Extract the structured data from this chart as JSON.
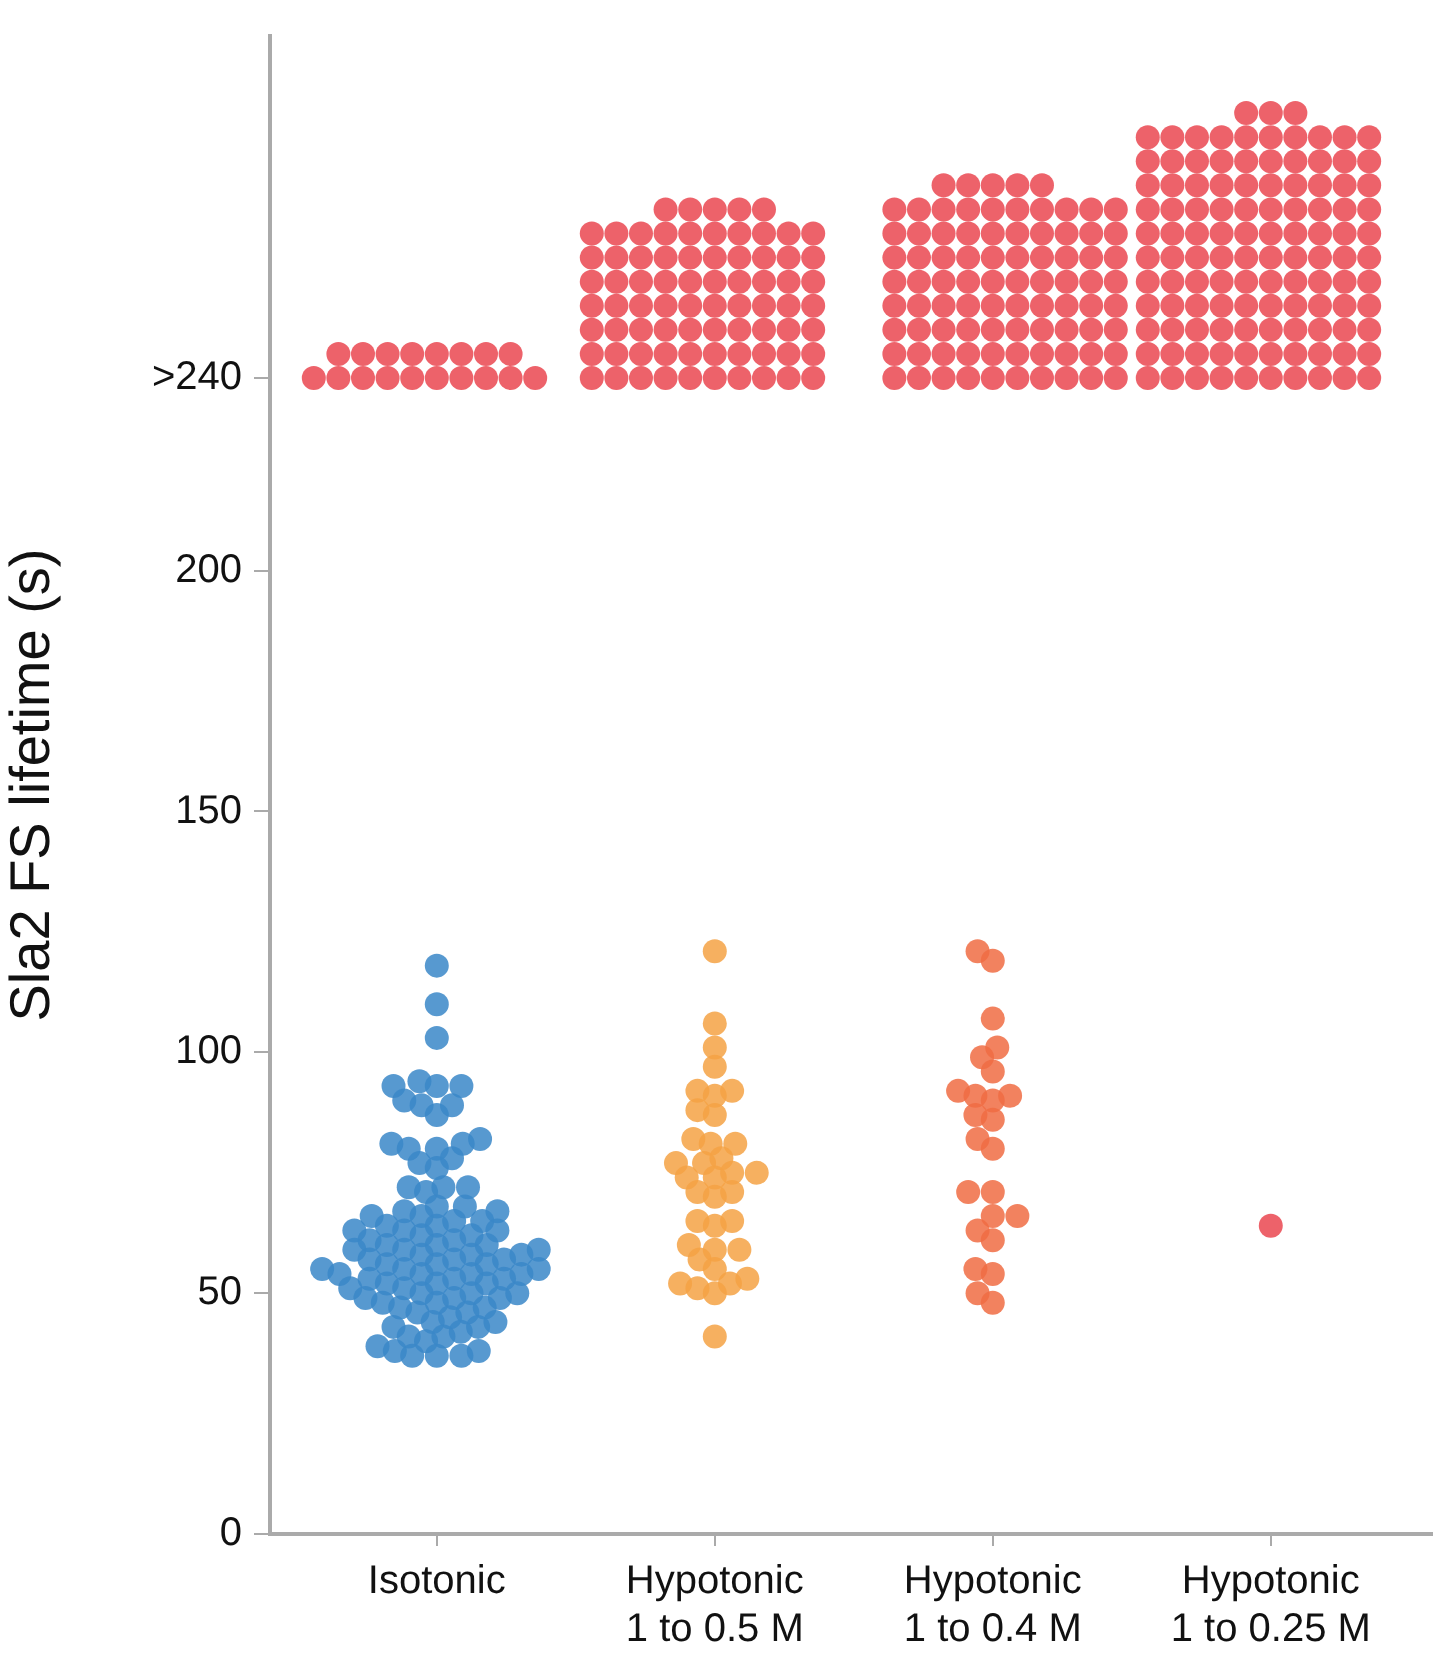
{
  "chart_data": {
    "type": "scatter",
    "ylabel": "Sla2 FS lifetime (s)",
    "categories": [
      "Isotonic",
      "Hypotonic 1 to 0.5 M",
      "Hypotonic 1 to 0.4 M",
      "Hypotonic 1 to 0.25 M"
    ],
    "ylim": [
      0,
      311
    ],
    "yticks": [
      0,
      50,
      100,
      150,
      200,
      {
        "value": 240,
        "label": ">240"
      }
    ],
    "grid": false,
    "legend": false,
    "marker": "circle",
    "series": [
      {
        "color": "#3a87c8",
        "x": [
          "Isotonic",
          "Isotonic",
          "Isotonic",
          "Isotonic",
          "Isotonic",
          "Isotonic",
          "Isotonic",
          "Isotonic",
          "Isotonic",
          "Isotonic",
          "Isotonic",
          "Isotonic",
          "Isotonic",
          "Isotonic",
          "Isotonic",
          "Isotonic",
          "Isotonic",
          "Isotonic",
          "Isotonic",
          "Isotonic",
          "Isotonic",
          "Isotonic",
          "Isotonic",
          "Isotonic",
          "Isotonic",
          "Isotonic",
          "Isotonic",
          "Isotonic",
          "Isotonic",
          "Isotonic",
          "Isotonic",
          "Isotonic",
          "Isotonic",
          "Isotonic",
          "Isotonic",
          "Isotonic",
          "Isotonic",
          "Isotonic",
          "Isotonic",
          "Isotonic",
          "Isotonic",
          "Isotonic",
          "Isotonic",
          "Isotonic",
          "Isotonic",
          "Isotonic",
          "Isotonic",
          "Isotonic",
          "Isotonic",
          "Isotonic",
          "Isotonic",
          "Isotonic",
          "Isotonic",
          "Isotonic",
          "Isotonic",
          "Isotonic",
          "Isotonic",
          "Isotonic",
          "Isotonic",
          "Isotonic",
          "Isotonic",
          "Isotonic",
          "Isotonic",
          "Isotonic",
          "Isotonic",
          "Isotonic",
          "Isotonic",
          "Isotonic",
          "Isotonic",
          "Isotonic",
          "Isotonic",
          "Isotonic",
          "Isotonic",
          "Isotonic",
          "Isotonic",
          "Isotonic",
          "Isotonic",
          "Isotonic",
          "Isotonic",
          "Isotonic",
          "Isotonic",
          "Isotonic",
          "Isotonic",
          "Isotonic",
          "Isotonic",
          "Isotonic",
          "Isotonic",
          "Isotonic",
          "Isotonic",
          "Isotonic",
          "Isotonic",
          "Isotonic",
          "Isotonic",
          "Isotonic",
          "Isotonic",
          "Isotonic",
          "Isotonic"
        ],
        "values": [
          118,
          110,
          103,
          94,
          93,
          93,
          93,
          89,
          90,
          89,
          87,
          81,
          82,
          81,
          80,
          78,
          80,
          77,
          76,
          72,
          72,
          72,
          71,
          68,
          68,
          67,
          67,
          66,
          66,
          65,
          65,
          64,
          64,
          63,
          63,
          63,
          62,
          62,
          61,
          61,
          60,
          60,
          60,
          59,
          59,
          59,
          58,
          58,
          58,
          57,
          57,
          57,
          56,
          56,
          56,
          55,
          55,
          55,
          54,
          54,
          54,
          54,
          53,
          53,
          53,
          52,
          52,
          52,
          51,
          51,
          50,
          50,
          50,
          49,
          49,
          49,
          48,
          48,
          47,
          47,
          46,
          46,
          45,
          44,
          44,
          43,
          43,
          42,
          41,
          41,
          40,
          39,
          38,
          38,
          37,
          37,
          37
        ]
      },
      {
        "color": "#f5a244",
        "x": [
          "Hypotonic 1 to 0.5 M",
          "Hypotonic 1 to 0.5 M",
          "Hypotonic 1 to 0.5 M",
          "Hypotonic 1 to 0.5 M",
          "Hypotonic 1 to 0.5 M",
          "Hypotonic 1 to 0.5 M",
          "Hypotonic 1 to 0.5 M",
          "Hypotonic 1 to 0.5 M",
          "Hypotonic 1 to 0.5 M",
          "Hypotonic 1 to 0.5 M",
          "Hypotonic 1 to 0.5 M",
          "Hypotonic 1 to 0.5 M",
          "Hypotonic 1 to 0.5 M",
          "Hypotonic 1 to 0.5 M",
          "Hypotonic 1 to 0.5 M",
          "Hypotonic 1 to 0.5 M",
          "Hypotonic 1 to 0.5 M",
          "Hypotonic 1 to 0.5 M",
          "Hypotonic 1 to 0.5 M",
          "Hypotonic 1 to 0.5 M",
          "Hypotonic 1 to 0.5 M",
          "Hypotonic 1 to 0.5 M",
          "Hypotonic 1 to 0.5 M",
          "Hypotonic 1 to 0.5 M",
          "Hypotonic 1 to 0.5 M",
          "Hypotonic 1 to 0.5 M",
          "Hypotonic 1 to 0.5 M",
          "Hypotonic 1 to 0.5 M",
          "Hypotonic 1 to 0.5 M",
          "Hypotonic 1 to 0.5 M",
          "Hypotonic 1 to 0.5 M",
          "Hypotonic 1 to 0.5 M",
          "Hypotonic 1 to 0.5 M",
          "Hypotonic 1 to 0.5 M",
          "Hypotonic 1 to 0.5 M",
          "Hypotonic 1 to 0.5 M"
        ],
        "values": [
          121,
          106,
          101,
          97,
          92,
          91,
          92,
          87,
          88,
          81,
          81,
          82,
          78,
          77,
          77,
          74,
          75,
          74,
          71,
          71,
          70,
          75,
          64,
          65,
          65,
          57,
          59,
          59,
          60,
          52,
          53,
          52,
          55,
          50,
          51,
          41
        ]
      },
      {
        "color": "#f06c43",
        "x": [
          "Hypotonic 1 to 0.4 M",
          "Hypotonic 1 to 0.4 M",
          "Hypotonic 1 to 0.4 M",
          "Hypotonic 1 to 0.4 M",
          "Hypotonic 1 to 0.4 M",
          "Hypotonic 1 to 0.4 M",
          "Hypotonic 1 to 0.4 M",
          "Hypotonic 1 to 0.4 M",
          "Hypotonic 1 to 0.4 M",
          "Hypotonic 1 to 0.4 M",
          "Hypotonic 1 to 0.4 M",
          "Hypotonic 1 to 0.4 M",
          "Hypotonic 1 to 0.4 M",
          "Hypotonic 1 to 0.4 M",
          "Hypotonic 1 to 0.4 M",
          "Hypotonic 1 to 0.4 M",
          "Hypotonic 1 to 0.4 M",
          "Hypotonic 1 to 0.4 M",
          "Hypotonic 1 to 0.4 M",
          "Hypotonic 1 to 0.4 M",
          "Hypotonic 1 to 0.4 M",
          "Hypotonic 1 to 0.4 M",
          "Hypotonic 1 to 0.4 M",
          "Hypotonic 1 to 0.4 M"
        ],
        "values": [
          121,
          119,
          107,
          99,
          101,
          96,
          91,
          92,
          90,
          87,
          91,
          86,
          82,
          80,
          71,
          71,
          66,
          66,
          63,
          61,
          55,
          54,
          50,
          48
        ]
      },
      {
        "color": "#ea4650",
        "x": [
          "Isotonic",
          "Isotonic",
          "Isotonic",
          "Isotonic",
          "Isotonic",
          "Isotonic",
          "Isotonic",
          "Isotonic",
          "Isotonic",
          "Isotonic",
          "Isotonic",
          "Isotonic",
          "Isotonic",
          "Isotonic",
          "Isotonic",
          "Isotonic",
          "Isotonic",
          "Isotonic"
        ],
        "values": [
          240,
          240,
          240,
          240,
          240,
          240,
          240,
          240,
          240,
          240,
          245,
          245,
          245,
          245,
          245,
          245,
          245,
          245
        ]
      },
      {
        "color": "#ea4650",
        "x": [
          "Hypotonic 1 to 0.5 M",
          "Hypotonic 1 to 0.5 M",
          "Hypotonic 1 to 0.5 M",
          "Hypotonic 1 to 0.5 M",
          "Hypotonic 1 to 0.5 M",
          "Hypotonic 1 to 0.5 M",
          "Hypotonic 1 to 0.5 M",
          "Hypotonic 1 to 0.5 M",
          "Hypotonic 1 to 0.5 M",
          "Hypotonic 1 to 0.5 M",
          "Hypotonic 1 to 0.5 M",
          "Hypotonic 1 to 0.5 M",
          "Hypotonic 1 to 0.5 M",
          "Hypotonic 1 to 0.5 M",
          "Hypotonic 1 to 0.5 M",
          "Hypotonic 1 to 0.5 M",
          "Hypotonic 1 to 0.5 M",
          "Hypotonic 1 to 0.5 M",
          "Hypotonic 1 to 0.5 M",
          "Hypotonic 1 to 0.5 M",
          "Hypotonic 1 to 0.5 M",
          "Hypotonic 1 to 0.5 M",
          "Hypotonic 1 to 0.5 M",
          "Hypotonic 1 to 0.5 M",
          "Hypotonic 1 to 0.5 M",
          "Hypotonic 1 to 0.5 M",
          "Hypotonic 1 to 0.5 M",
          "Hypotonic 1 to 0.5 M",
          "Hypotonic 1 to 0.5 M",
          "Hypotonic 1 to 0.5 M",
          "Hypotonic 1 to 0.5 M",
          "Hypotonic 1 to 0.5 M",
          "Hypotonic 1 to 0.5 M",
          "Hypotonic 1 to 0.5 M",
          "Hypotonic 1 to 0.5 M",
          "Hypotonic 1 to 0.5 M",
          "Hypotonic 1 to 0.5 M",
          "Hypotonic 1 to 0.5 M",
          "Hypotonic 1 to 0.5 M",
          "Hypotonic 1 to 0.5 M",
          "Hypotonic 1 to 0.5 M",
          "Hypotonic 1 to 0.5 M",
          "Hypotonic 1 to 0.5 M",
          "Hypotonic 1 to 0.5 M",
          "Hypotonic 1 to 0.5 M",
          "Hypotonic 1 to 0.5 M",
          "Hypotonic 1 to 0.5 M",
          "Hypotonic 1 to 0.5 M",
          "Hypotonic 1 to 0.5 M",
          "Hypotonic 1 to 0.5 M",
          "Hypotonic 1 to 0.5 M",
          "Hypotonic 1 to 0.5 M",
          "Hypotonic 1 to 0.5 M",
          "Hypotonic 1 to 0.5 M",
          "Hypotonic 1 to 0.5 M",
          "Hypotonic 1 to 0.5 M",
          "Hypotonic 1 to 0.5 M",
          "Hypotonic 1 to 0.5 M",
          "Hypotonic 1 to 0.5 M",
          "Hypotonic 1 to 0.5 M",
          "Hypotonic 1 to 0.5 M",
          "Hypotonic 1 to 0.5 M",
          "Hypotonic 1 to 0.5 M",
          "Hypotonic 1 to 0.5 M",
          "Hypotonic 1 to 0.5 M",
          "Hypotonic 1 to 0.5 M",
          "Hypotonic 1 to 0.5 M",
          "Hypotonic 1 to 0.5 M",
          "Hypotonic 1 to 0.5 M",
          "Hypotonic 1 to 0.5 M",
          "Hypotonic 1 to 0.5 M",
          "Hypotonic 1 to 0.5 M",
          "Hypotonic 1 to 0.5 M",
          "Hypotonic 1 to 0.5 M",
          "Hypotonic 1 to 0.5 M"
        ],
        "values": [
          240,
          240,
          240,
          240,
          240,
          240,
          240,
          240,
          240,
          240,
          245,
          245,
          245,
          245,
          245,
          245,
          245,
          245,
          245,
          245,
          250,
          250,
          250,
          250,
          250,
          250,
          250,
          250,
          250,
          250,
          255,
          255,
          255,
          255,
          255,
          255,
          255,
          255,
          255,
          255,
          260,
          260,
          260,
          260,
          260,
          260,
          260,
          260,
          260,
          260,
          265,
          265,
          265,
          265,
          265,
          265,
          265,
          265,
          265,
          265,
          270,
          270,
          270,
          270,
          270,
          270,
          270,
          270,
          270,
          270,
          275,
          275,
          275,
          275,
          275
        ]
      },
      {
        "color": "#ea4650",
        "x": [
          "Hypotonic 1 to 0.4 M",
          "Hypotonic 1 to 0.4 M",
          "Hypotonic 1 to 0.4 M",
          "Hypotonic 1 to 0.4 M",
          "Hypotonic 1 to 0.4 M",
          "Hypotonic 1 to 0.4 M",
          "Hypotonic 1 to 0.4 M",
          "Hypotonic 1 to 0.4 M",
          "Hypotonic 1 to 0.4 M",
          "Hypotonic 1 to 0.4 M",
          "Hypotonic 1 to 0.4 M",
          "Hypotonic 1 to 0.4 M",
          "Hypotonic 1 to 0.4 M",
          "Hypotonic 1 to 0.4 M",
          "Hypotonic 1 to 0.4 M",
          "Hypotonic 1 to 0.4 M",
          "Hypotonic 1 to 0.4 M",
          "Hypotonic 1 to 0.4 M",
          "Hypotonic 1 to 0.4 M",
          "Hypotonic 1 to 0.4 M",
          "Hypotonic 1 to 0.4 M",
          "Hypotonic 1 to 0.4 M",
          "Hypotonic 1 to 0.4 M",
          "Hypotonic 1 to 0.4 M",
          "Hypotonic 1 to 0.4 M",
          "Hypotonic 1 to 0.4 M",
          "Hypotonic 1 to 0.4 M",
          "Hypotonic 1 to 0.4 M",
          "Hypotonic 1 to 0.4 M",
          "Hypotonic 1 to 0.4 M",
          "Hypotonic 1 to 0.4 M",
          "Hypotonic 1 to 0.4 M",
          "Hypotonic 1 to 0.4 M",
          "Hypotonic 1 to 0.4 M",
          "Hypotonic 1 to 0.4 M",
          "Hypotonic 1 to 0.4 M",
          "Hypotonic 1 to 0.4 M",
          "Hypotonic 1 to 0.4 M",
          "Hypotonic 1 to 0.4 M",
          "Hypotonic 1 to 0.4 M",
          "Hypotonic 1 to 0.4 M",
          "Hypotonic 1 to 0.4 M",
          "Hypotonic 1 to 0.4 M",
          "Hypotonic 1 to 0.4 M",
          "Hypotonic 1 to 0.4 M",
          "Hypotonic 1 to 0.4 M",
          "Hypotonic 1 to 0.4 M",
          "Hypotonic 1 to 0.4 M",
          "Hypotonic 1 to 0.4 M",
          "Hypotonic 1 to 0.4 M",
          "Hypotonic 1 to 0.4 M",
          "Hypotonic 1 to 0.4 M",
          "Hypotonic 1 to 0.4 M",
          "Hypotonic 1 to 0.4 M",
          "Hypotonic 1 to 0.4 M",
          "Hypotonic 1 to 0.4 M",
          "Hypotonic 1 to 0.4 M",
          "Hypotonic 1 to 0.4 M",
          "Hypotonic 1 to 0.4 M",
          "Hypotonic 1 to 0.4 M",
          "Hypotonic 1 to 0.4 M",
          "Hypotonic 1 to 0.4 M",
          "Hypotonic 1 to 0.4 M",
          "Hypotonic 1 to 0.4 M",
          "Hypotonic 1 to 0.4 M",
          "Hypotonic 1 to 0.4 M",
          "Hypotonic 1 to 0.4 M",
          "Hypotonic 1 to 0.4 M",
          "Hypotonic 1 to 0.4 M",
          "Hypotonic 1 to 0.4 M",
          "Hypotonic 1 to 0.4 M",
          "Hypotonic 1 to 0.4 M",
          "Hypotonic 1 to 0.4 M",
          "Hypotonic 1 to 0.4 M",
          "Hypotonic 1 to 0.4 M",
          "Hypotonic 1 to 0.4 M",
          "Hypotonic 1 to 0.4 M",
          "Hypotonic 1 to 0.4 M",
          "Hypotonic 1 to 0.4 M",
          "Hypotonic 1 to 0.4 M",
          "Hypotonic 1 to 0.4 M",
          "Hypotonic 1 to 0.4 M",
          "Hypotonic 1 to 0.4 M",
          "Hypotonic 1 to 0.4 M",
          "Hypotonic 1 to 0.4 M"
        ],
        "values": [
          240,
          240,
          240,
          240,
          240,
          240,
          240,
          240,
          240,
          240,
          245,
          245,
          245,
          245,
          245,
          245,
          245,
          245,
          245,
          245,
          250,
          250,
          250,
          250,
          250,
          250,
          250,
          250,
          250,
          250,
          255,
          255,
          255,
          255,
          255,
          255,
          255,
          255,
          255,
          255,
          260,
          260,
          260,
          260,
          260,
          260,
          260,
          260,
          260,
          260,
          265,
          265,
          265,
          265,
          265,
          265,
          265,
          265,
          265,
          265,
          270,
          270,
          270,
          270,
          270,
          270,
          270,
          270,
          270,
          270,
          275,
          275,
          275,
          275,
          275,
          275,
          275,
          275,
          275,
          275,
          280,
          280,
          280,
          280,
          280
        ]
      },
      {
        "color": "#ea4650",
        "x": [
          "Hypotonic 1 to 0.25 M",
          "Hypotonic 1 to 0.25 M",
          "Hypotonic 1 to 0.25 M",
          "Hypotonic 1 to 0.25 M",
          "Hypotonic 1 to 0.25 M",
          "Hypotonic 1 to 0.25 M",
          "Hypotonic 1 to 0.25 M",
          "Hypotonic 1 to 0.25 M",
          "Hypotonic 1 to 0.25 M",
          "Hypotonic 1 to 0.25 M",
          "Hypotonic 1 to 0.25 M",
          "Hypotonic 1 to 0.25 M",
          "Hypotonic 1 to 0.25 M",
          "Hypotonic 1 to 0.25 M",
          "Hypotonic 1 to 0.25 M",
          "Hypotonic 1 to 0.25 M",
          "Hypotonic 1 to 0.25 M",
          "Hypotonic 1 to 0.25 M",
          "Hypotonic 1 to 0.25 M",
          "Hypotonic 1 to 0.25 M",
          "Hypotonic 1 to 0.25 M",
          "Hypotonic 1 to 0.25 M",
          "Hypotonic 1 to 0.25 M",
          "Hypotonic 1 to 0.25 M",
          "Hypotonic 1 to 0.25 M",
          "Hypotonic 1 to 0.25 M",
          "Hypotonic 1 to 0.25 M",
          "Hypotonic 1 to 0.25 M",
          "Hypotonic 1 to 0.25 M",
          "Hypotonic 1 to 0.25 M",
          "Hypotonic 1 to 0.25 M",
          "Hypotonic 1 to 0.25 M",
          "Hypotonic 1 to 0.25 M",
          "Hypotonic 1 to 0.25 M",
          "Hypotonic 1 to 0.25 M",
          "Hypotonic 1 to 0.25 M",
          "Hypotonic 1 to 0.25 M",
          "Hypotonic 1 to 0.25 M",
          "Hypotonic 1 to 0.25 M",
          "Hypotonic 1 to 0.25 M",
          "Hypotonic 1 to 0.25 M",
          "Hypotonic 1 to 0.25 M",
          "Hypotonic 1 to 0.25 M",
          "Hypotonic 1 to 0.25 M",
          "Hypotonic 1 to 0.25 M",
          "Hypotonic 1 to 0.25 M",
          "Hypotonic 1 to 0.25 M",
          "Hypotonic 1 to 0.25 M",
          "Hypotonic 1 to 0.25 M",
          "Hypotonic 1 to 0.25 M",
          "Hypotonic 1 to 0.25 M",
          "Hypotonic 1 to 0.25 M",
          "Hypotonic 1 to 0.25 M",
          "Hypotonic 1 to 0.25 M",
          "Hypotonic 1 to 0.25 M",
          "Hypotonic 1 to 0.25 M",
          "Hypotonic 1 to 0.25 M",
          "Hypotonic 1 to 0.25 M",
          "Hypotonic 1 to 0.25 M",
          "Hypotonic 1 to 0.25 M",
          "Hypotonic 1 to 0.25 M",
          "Hypotonic 1 to 0.25 M",
          "Hypotonic 1 to 0.25 M",
          "Hypotonic 1 to 0.25 M",
          "Hypotonic 1 to 0.25 M",
          "Hypotonic 1 to 0.25 M",
          "Hypotonic 1 to 0.25 M",
          "Hypotonic 1 to 0.25 M",
          "Hypotonic 1 to 0.25 M",
          "Hypotonic 1 to 0.25 M",
          "Hypotonic 1 to 0.25 M",
          "Hypotonic 1 to 0.25 M",
          "Hypotonic 1 to 0.25 M",
          "Hypotonic 1 to 0.25 M",
          "Hypotonic 1 to 0.25 M",
          "Hypotonic 1 to 0.25 M",
          "Hypotonic 1 to 0.25 M",
          "Hypotonic 1 to 0.25 M",
          "Hypotonic 1 to 0.25 M",
          "Hypotonic 1 to 0.25 M",
          "Hypotonic 1 to 0.25 M",
          "Hypotonic 1 to 0.25 M",
          "Hypotonic 1 to 0.25 M",
          "Hypotonic 1 to 0.25 M",
          "Hypotonic 1 to 0.25 M",
          "Hypotonic 1 to 0.25 M",
          "Hypotonic 1 to 0.25 M",
          "Hypotonic 1 to 0.25 M",
          "Hypotonic 1 to 0.25 M",
          "Hypotonic 1 to 0.25 M",
          "Hypotonic 1 to 0.25 M",
          "Hypotonic 1 to 0.25 M",
          "Hypotonic 1 to 0.25 M",
          "Hypotonic 1 to 0.25 M",
          "Hypotonic 1 to 0.25 M",
          "Hypotonic 1 to 0.25 M",
          "Hypotonic 1 to 0.25 M",
          "Hypotonic 1 to 0.25 M",
          "Hypotonic 1 to 0.25 M",
          "Hypotonic 1 to 0.25 M",
          "Hypotonic 1 to 0.25 M",
          "Hypotonic 1 to 0.25 M",
          "Hypotonic 1 to 0.25 M",
          "Hypotonic 1 to 0.25 M",
          "Hypotonic 1 to 0.25 M",
          "Hypotonic 1 to 0.25 M",
          "Hypotonic 1 to 0.25 M",
          "Hypotonic 1 to 0.25 M",
          "Hypotonic 1 to 0.25 M",
          "Hypotonic 1 to 0.25 M",
          "Hypotonic 1 to 0.25 M",
          "Hypotonic 1 to 0.25 M",
          "Hypotonic 1 to 0.25 M",
          "Hypotonic 1 to 0.25 M"
        ],
        "values": [
          64,
          240,
          240,
          240,
          240,
          240,
          240,
          240,
          240,
          240,
          240,
          245,
          245,
          245,
          245,
          245,
          245,
          245,
          245,
          245,
          245,
          250,
          250,
          250,
          250,
          250,
          250,
          250,
          250,
          250,
          250,
          255,
          255,
          255,
          255,
          255,
          255,
          255,
          255,
          255,
          255,
          260,
          260,
          260,
          260,
          260,
          260,
          260,
          260,
          260,
          260,
          265,
          265,
          265,
          265,
          265,
          265,
          265,
          265,
          265,
          265,
          270,
          270,
          270,
          270,
          270,
          270,
          270,
          270,
          270,
          270,
          275,
          275,
          275,
          275,
          275,
          275,
          275,
          275,
          275,
          275,
          280,
          280,
          280,
          280,
          280,
          280,
          280,
          280,
          280,
          280,
          285,
          285,
          285,
          285,
          285,
          285,
          285,
          285,
          285,
          285,
          290,
          290,
          290,
          290,
          290,
          290,
          290,
          290,
          290,
          290,
          295,
          295,
          295
        ]
      }
    ]
  }
}
